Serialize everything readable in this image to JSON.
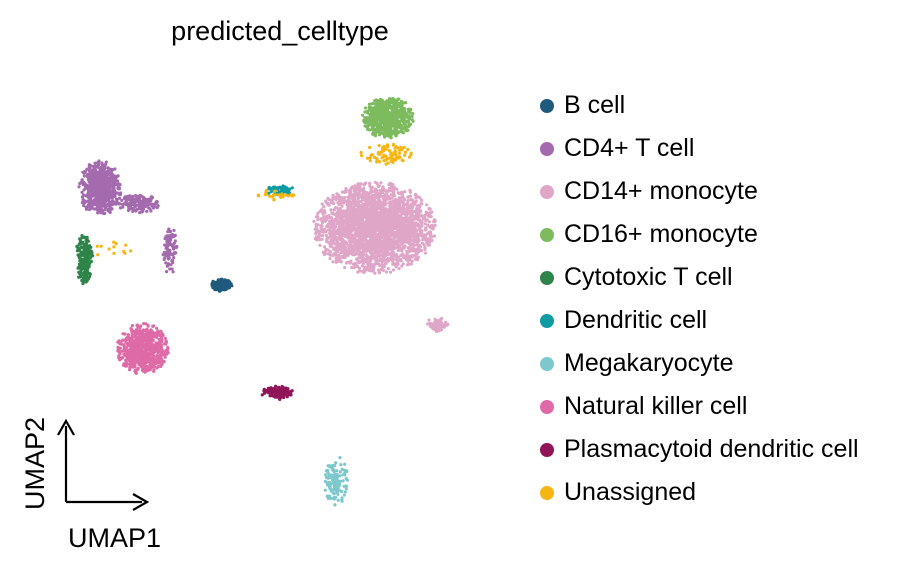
{
  "chart_data": {
    "type": "scatter",
    "title": "predicted_celltype",
    "xlabel": "UMAP1",
    "ylabel": "UMAP2",
    "xlim": [
      0,
      10
    ],
    "ylim": [
      0,
      10
    ],
    "legend_position": "right",
    "series": [
      {
        "name": "B cell",
        "color": "#1f5a7d",
        "clusters": [
          {
            "cx": 3.7,
            "cy": 5.0,
            "rx": 0.22,
            "ry": 0.14,
            "n": 110
          }
        ]
      },
      {
        "name": "CD4+ T cell",
        "color": "#a46aae",
        "clusters": [
          {
            "cx": 1.0,
            "cy": 7.2,
            "rx": 0.45,
            "ry": 0.6,
            "n": 650
          },
          {
            "cx": 1.85,
            "cy": 6.85,
            "rx": 0.45,
            "ry": 0.2,
            "n": 160
          },
          {
            "cx": 2.55,
            "cy": 5.8,
            "rx": 0.15,
            "ry": 0.55,
            "n": 90
          }
        ]
      },
      {
        "name": "CD14+ monocyte",
        "color": "#dfa6c8",
        "clusters": [
          {
            "cx": 7.1,
            "cy": 6.3,
            "rx": 1.3,
            "ry": 1.0,
            "n": 2600
          },
          {
            "cx": 8.5,
            "cy": 4.1,
            "rx": 0.25,
            "ry": 0.15,
            "n": 60
          }
        ]
      },
      {
        "name": "CD16+ monocyte",
        "color": "#7dbb5e",
        "clusters": [
          {
            "cx": 7.4,
            "cy": 8.8,
            "rx": 0.55,
            "ry": 0.45,
            "n": 700
          }
        ]
      },
      {
        "name": "Cytotoxic T cell",
        "color": "#2e8449",
        "clusters": [
          {
            "cx": 0.65,
            "cy": 5.6,
            "rx": 0.18,
            "ry": 0.55,
            "n": 200
          }
        ]
      },
      {
        "name": "Dendritic cell",
        "color": "#0e9ba2",
        "clusters": [
          {
            "cx": 5.0,
            "cy": 7.15,
            "rx": 0.3,
            "ry": 0.12,
            "n": 70
          }
        ]
      },
      {
        "name": "Megakaryocyte",
        "color": "#7cc8cc",
        "clusters": [
          {
            "cx": 6.25,
            "cy": 0.55,
            "rx": 0.25,
            "ry": 0.55,
            "n": 130
          }
        ]
      },
      {
        "name": "Natural killer cell",
        "color": "#de6aa7",
        "clusters": [
          {
            "cx": 1.95,
            "cy": 3.55,
            "rx": 0.55,
            "ry": 0.55,
            "n": 700
          }
        ]
      },
      {
        "name": "Plasmacytoid dendritic cell",
        "color": "#901558",
        "clusters": [
          {
            "cx": 4.95,
            "cy": 2.55,
            "rx": 0.35,
            "ry": 0.15,
            "n": 120
          }
        ]
      },
      {
        "name": "Unassigned",
        "color": "#f5b513",
        "clusters": [
          {
            "cx": 7.35,
            "cy": 7.95,
            "rx": 0.55,
            "ry": 0.25,
            "n": 90
          },
          {
            "cx": 4.9,
            "cy": 7.05,
            "rx": 0.5,
            "ry": 0.12,
            "n": 25
          },
          {
            "cx": 1.3,
            "cy": 5.8,
            "rx": 0.4,
            "ry": 0.2,
            "n": 12
          }
        ]
      }
    ]
  }
}
